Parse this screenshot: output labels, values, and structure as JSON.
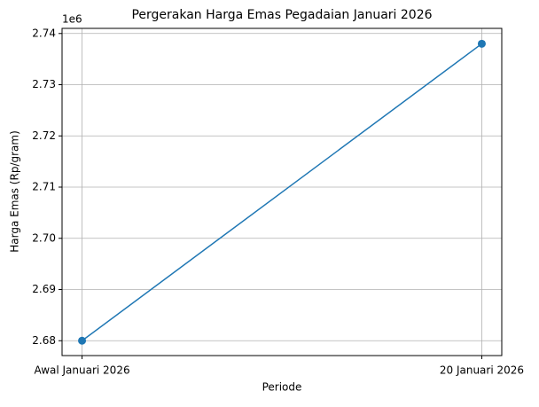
{
  "chart_data": {
    "type": "line",
    "title": "Pergerakan Harga Emas Pegadaian Januari 2026",
    "x_label": "Periode",
    "y_label": "Harga Emas (Rp/gram)",
    "y_offset_label": "1e6",
    "categories": [
      "Awal Januari 2026",
      "20 Januari 2026"
    ],
    "values": [
      2680000,
      2738000
    ],
    "color": "#1f77b4",
    "marker": "circle",
    "ylim": [
      2677100,
      2741000
    ],
    "yticks": [
      {
        "value": 2680000,
        "label": "2.68"
      },
      {
        "value": 2690000,
        "label": "2.69"
      },
      {
        "value": 2700000,
        "label": "2.70"
      },
      {
        "value": 2710000,
        "label": "2.71"
      },
      {
        "value": 2720000,
        "label": "2.72"
      },
      {
        "value": 2730000,
        "label": "2.73"
      },
      {
        "value": 2740000,
        "label": "2.74"
      }
    ],
    "grid": true
  }
}
